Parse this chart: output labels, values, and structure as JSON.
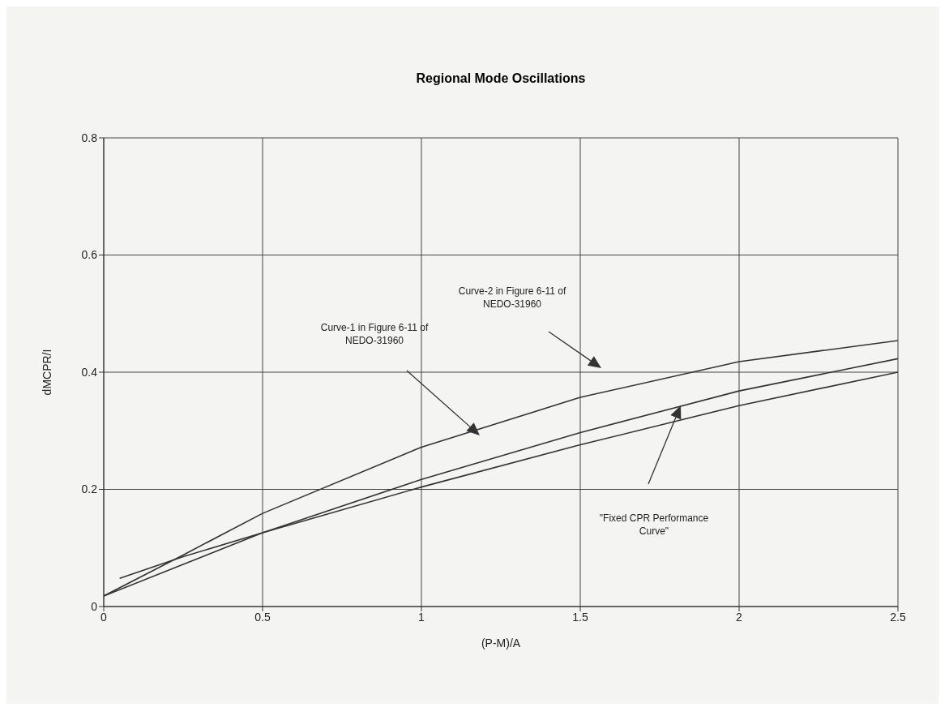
{
  "chart_data": {
    "type": "line",
    "title": "Regional Mode Oscillations",
    "xlabel": "(P-M)/A",
    "ylabel": "dMCPR/I",
    "xlim": [
      0,
      2.5
    ],
    "xticks": [
      0,
      0.5,
      1,
      1.5,
      2,
      2.5
    ],
    "ylim": [
      0,
      0.8
    ],
    "yticks": [
      0,
      0.2,
      0.4,
      0.6,
      0.8
    ],
    "grid": true,
    "marker": "none",
    "line_style": "solid",
    "series": [
      {
        "color": "#333333",
        "x": [
          0,
          0.25,
          0.5,
          1,
          1.5,
          2,
          2.5
        ],
        "values": [
          0.018,
          0.088,
          0.159,
          0.272,
          0.357,
          0.418,
          0.454
        ]
      },
      {
        "color": "#333333",
        "x": [
          0.05,
          0.25,
          0.5,
          1,
          1.5,
          2,
          2.5
        ],
        "values": [
          0.048,
          0.085,
          0.126,
          0.217,
          0.297,
          0.368,
          0.423
        ]
      },
      {
        "color": "#333333",
        "x": [
          0,
          0.25,
          0.5,
          1,
          1.5,
          2,
          2.5
        ],
        "values": [
          0.018,
          0.072,
          0.126,
          0.204,
          0.276,
          0.343,
          0.4
        ]
      }
    ],
    "annotations": [
      "Curve-2 in Figure 6-11 of NEDO-31960",
      "Curve-1 in Figure 6-11 of NEDO-31960",
      "\"Fixed CPR Performance Curve\""
    ]
  }
}
